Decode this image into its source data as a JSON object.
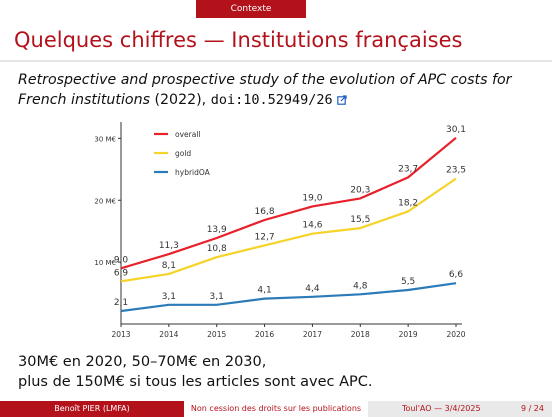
{
  "header": {
    "section": "Contexte"
  },
  "slide": {
    "title": "Quelques chiffres — Institutions françaises",
    "subtitle_italic": "Retrospective and prospective study of the evolution of APC costs for French institutions",
    "subtitle_year": " (2022), ",
    "doi": "doi:10.52949/26",
    "bottom_line1": "30M€ en 2020, 50–70M€ en 2030,",
    "bottom_line2": "plus de 150M€ si tous les articles sont avec APC."
  },
  "footer": {
    "author": "Benoît PIER  (LMFA)",
    "talk": "Non cession des droits sur les publications",
    "conference": "Toul'AO — 3/4/2025",
    "page": "9 / 24"
  },
  "icons": {
    "external_link": "external-link-icon"
  },
  "colors": {
    "accent": "#b3121b",
    "overall": "#e8202a",
    "gold": "#f5d327",
    "hybridOA": "#2b7bb9"
  },
  "chart_data": {
    "type": "line",
    "x": [
      2013,
      2014,
      2015,
      2016,
      2017,
      2018,
      2019,
      2020
    ],
    "ylim": [
      0,
      32
    ],
    "yticks": [
      10,
      20,
      30
    ],
    "ytick_labels": [
      "10 M€",
      "20 M€",
      "30 M€"
    ],
    "legend_placement": "top-left",
    "grid": false,
    "series": [
      {
        "name": "overall",
        "color": "#e8202a",
        "values": [
          9.0,
          11.3,
          13.9,
          16.8,
          19.0,
          20.3,
          23.7,
          30.1
        ],
        "labels": [
          "9,0",
          "11,3",
          "13,9",
          "16,8",
          "19,0",
          "20,3",
          "23,7",
          "30,1"
        ]
      },
      {
        "name": "gold",
        "color": "#f5d327",
        "values": [
          6.9,
          8.1,
          10.8,
          12.7,
          14.6,
          15.5,
          18.2,
          23.5
        ],
        "labels": [
          "6,9",
          "8,1",
          "10,8",
          "12,7",
          "14,6",
          "15,5",
          "18,2",
          "23,5"
        ]
      },
      {
        "name": "hybridOA",
        "color": "#2b7bb9",
        "values": [
          2.1,
          3.1,
          3.1,
          4.1,
          4.4,
          4.8,
          5.5,
          6.6
        ],
        "labels": [
          "2,1",
          "3,1",
          "3,1",
          "4,1",
          "4,4",
          "4,8",
          "5,5",
          "6,6"
        ]
      }
    ]
  }
}
